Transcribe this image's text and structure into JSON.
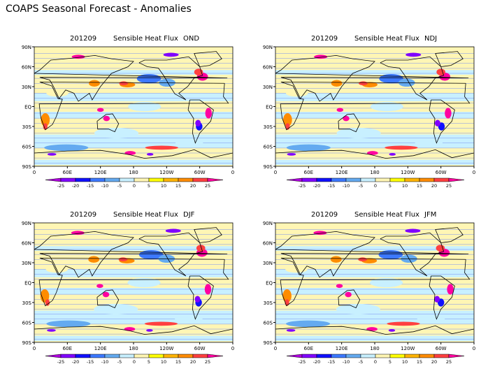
{
  "title": "COAPS Seasonal Forecast - Anomalies",
  "panels": [
    {
      "date": "201209",
      "variable": "Sensible Heat Flux",
      "season": "OND"
    },
    {
      "date": "201209",
      "variable": "Sensible Heat Flux",
      "season": "NDJ"
    },
    {
      "date": "201209",
      "variable": "Sensible Heat Flux",
      "season": "DJF"
    },
    {
      "date": "201209",
      "variable": "Sensible Heat Flux",
      "season": "JFM"
    }
  ],
  "lat_labels": [
    "90N",
    "60N",
    "30N",
    "EQ",
    "30S",
    "60S",
    "90S"
  ],
  "lon_labels": [
    "0",
    "60E",
    "120E",
    "180",
    "120W",
    "60W",
    "0"
  ],
  "colorbar": {
    "labels": [
      "-25",
      "-20",
      "-15",
      "-10",
      "-5",
      "0",
      "5",
      "10",
      "15",
      "20",
      "25"
    ],
    "colors": [
      "#b000e0",
      "#8000ff",
      "#1010ff",
      "#3c78ff",
      "#64aaf0",
      "#c8f0ff",
      "#fff6b4",
      "#ffff00",
      "#ffb400",
      "#ff8c00",
      "#ff4040",
      "#ff00a0"
    ]
  }
}
